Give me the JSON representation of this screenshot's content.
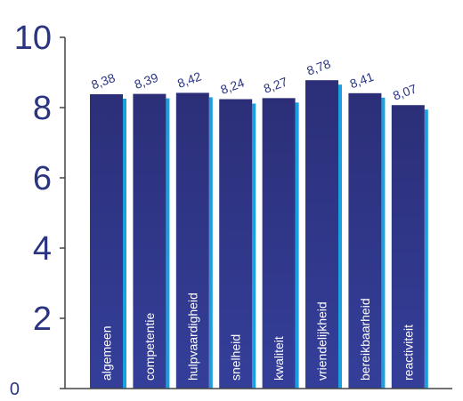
{
  "colors": {
    "axis_text": "#2a3480",
    "bar_top": "#2c2f78",
    "bar_bottom": "#343f9a",
    "bar_shadow": "#1a9fe0",
    "axis_line": "#444444",
    "value_text": "#2a3480",
    "bar_label": "#ffffff"
  },
  "chart_data": {
    "type": "bar",
    "categories": [
      "algemeen",
      "competentie",
      "hulpvaardigheid",
      "snelheid",
      "kwaliteit",
      "vriendelijkheid",
      "bereikbaarheid",
      "reactiviteit"
    ],
    "values": [
      8.38,
      8.39,
      8.42,
      8.24,
      8.27,
      8.78,
      8.41,
      8.07
    ],
    "value_labels": [
      "8,38",
      "8,39",
      "8,42",
      "8,24",
      "8,27",
      "8,78",
      "8,41",
      "8,07"
    ],
    "yticks": [
      0,
      2,
      4,
      6,
      8,
      10
    ],
    "ytick_labels": [
      "0",
      "2",
      "4",
      "6",
      "8",
      "10"
    ],
    "ylim": [
      0,
      10
    ],
    "title": "",
    "xlabel": "",
    "ylabel": "",
    "grid": false,
    "legend": "none"
  }
}
